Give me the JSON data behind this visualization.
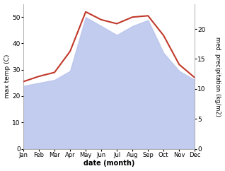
{
  "months": [
    "Jan",
    "Feb",
    "Mar",
    "Apr",
    "May",
    "Jun",
    "Jul",
    "Aug",
    "Sep",
    "Oct",
    "Nov",
    "Dec"
  ],
  "x": [
    0,
    1,
    2,
    3,
    4,
    5,
    6,
    7,
    8,
    9,
    10,
    11
  ],
  "temp_max": [
    25.5,
    27.5,
    29.0,
    37.0,
    52.0,
    49.0,
    47.5,
    50.0,
    50.5,
    43.0,
    32.0,
    27.0
  ],
  "precip": [
    10.5,
    11.0,
    11.5,
    13.0,
    22.0,
    20.5,
    19.0,
    20.5,
    21.5,
    16.0,
    13.0,
    11.5
  ],
  "temp_color": "#c0392b",
  "precip_fill_color": "#b8c4ec",
  "precip_fill_alpha": 0.85,
  "temp_ylim": [
    0,
    55
  ],
  "precip_ylim": [
    0,
    24.2
  ],
  "ylabel_left": "max temp (C)",
  "ylabel_right": "med. precipitation (kg/m2)",
  "xlabel": "date (month)",
  "left_yticks": [
    0,
    10,
    20,
    30,
    40,
    50
  ],
  "right_yticks": [
    0,
    5,
    10,
    15,
    20
  ],
  "figsize": [
    3.18,
    2.42
  ],
  "dpi": 100,
  "bg_color": "#ffffff"
}
